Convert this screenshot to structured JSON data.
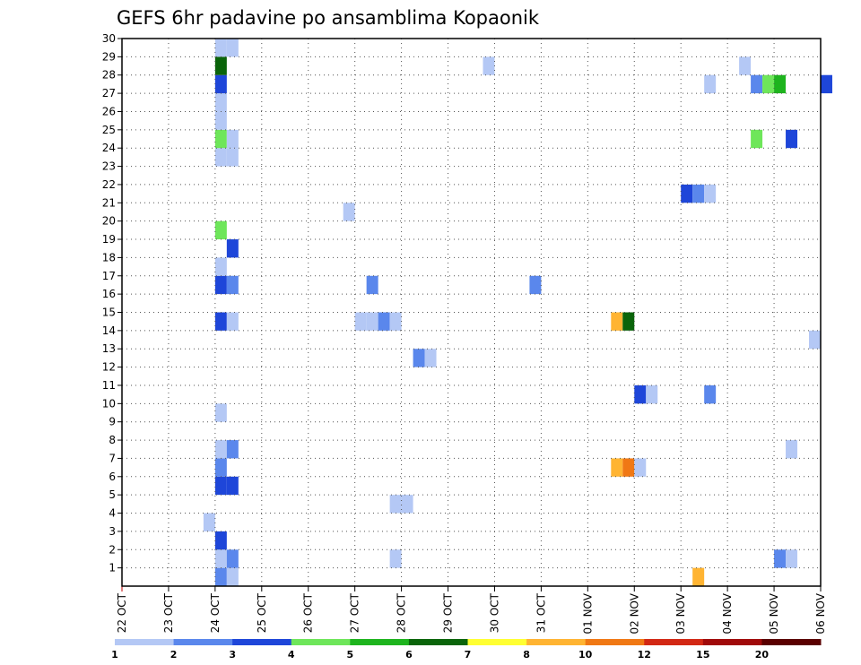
{
  "chart_data": {
    "type": "heatmap",
    "title": "GEFS 6hr padavine po ansamblima Kopaonik",
    "x_tick_labels": [
      "22 OCT",
      "23 OCT",
      "24 OCT",
      "25 OCT",
      "26 OCT",
      "27 OCT",
      "28 OCT",
      "29 OCT",
      "30 OCT",
      "31 OCT",
      "01 NOV",
      "02 NOV",
      "03 NOV",
      "04 NOV",
      "05 NOV",
      "06 NOV"
    ],
    "y_tick_labels": [
      "1",
      "2",
      "3",
      "4",
      "5",
      "6",
      "7",
      "8",
      "9",
      "10",
      "11",
      "12",
      "13",
      "14",
      "15",
      "16",
      "17",
      "18",
      "19",
      "20",
      "21",
      "22",
      "23",
      "24",
      "25",
      "26",
      "27",
      "28",
      "29",
      "30"
    ],
    "ylim": [
      0,
      30
    ],
    "time_step_hours": 6,
    "grid": "dotted",
    "colorbar": {
      "labels": [
        "1",
        "2",
        "3",
        "4",
        "5",
        "6",
        "7",
        "8",
        "10",
        "12",
        "15",
        "20"
      ],
      "colors": [
        "#b4c8f5",
        "#5a87ec",
        "#1e46d9",
        "#6ee65a",
        "#1eb41e",
        "#0a640a",
        "#ffff32",
        "#ffb432",
        "#f07814",
        "#d22814",
        "#a00a0a",
        "#5a0000"
      ]
    },
    "cells": [
      {
        "t": "24 OCT 00z",
        "m": 0,
        "c": 1
      },
      {
        "t": "24 OCT 00z",
        "m": 1,
        "c": 0
      },
      {
        "t": "24 OCT 00z",
        "m": 2,
        "c": 2
      },
      {
        "t": "24 OCT 00z",
        "m": 5,
        "c": 2
      },
      {
        "t": "24 OCT 00z",
        "m": 6,
        "c": 1
      },
      {
        "t": "24 OCT 00z",
        "m": 7,
        "c": 0
      },
      {
        "t": "24 OCT 00z",
        "m": 9,
        "c": 0
      },
      {
        "t": "24 OCT 00z",
        "m": 14,
        "c": 2
      },
      {
        "t": "24 OCT 00z",
        "m": 16,
        "c": 2
      },
      {
        "t": "24 OCT 00z",
        "m": 17,
        "c": 0
      },
      {
        "t": "24 OCT 00z",
        "m": 19,
        "c": 3
      },
      {
        "t": "24 OCT 00z",
        "m": 23,
        "c": 0
      },
      {
        "t": "24 OCT 00z",
        "m": 24,
        "c": 3
      },
      {
        "t": "24 OCT 00z",
        "m": 25,
        "c": 0
      },
      {
        "t": "24 OCT 00z",
        "m": 26,
        "c": 0
      },
      {
        "t": "24 OCT 00z",
        "m": 27,
        "c": 2
      },
      {
        "t": "24 OCT 00z",
        "m": 28,
        "c": 5
      },
      {
        "t": "24 OCT 00z",
        "m": 29,
        "c": 0
      },
      {
        "t": "23 OCT 18z",
        "m": 3,
        "c": 0
      },
      {
        "t": "24 OCT 06z",
        "m": 0,
        "c": 0
      },
      {
        "t": "24 OCT 06z",
        "m": 1,
        "c": 1
      },
      {
        "t": "24 OCT 06z",
        "m": 5,
        "c": 2
      },
      {
        "t": "24 OCT 06z",
        "m": 7,
        "c": 1
      },
      {
        "t": "24 OCT 06z",
        "m": 14,
        "c": 0
      },
      {
        "t": "24 OCT 06z",
        "m": 16,
        "c": 1
      },
      {
        "t": "24 OCT 06z",
        "m": 18,
        "c": 2
      },
      {
        "t": "24 OCT 06z",
        "m": 23,
        "c": 0
      },
      {
        "t": "24 OCT 06z",
        "m": 24,
        "c": 0
      },
      {
        "t": "24 OCT 06z",
        "m": 29,
        "c": 0
      },
      {
        "t": "26 OCT 18z",
        "m": 20,
        "c": 0
      },
      {
        "t": "27 OCT 00z",
        "m": 14,
        "c": 0
      },
      {
        "t": "27 OCT 06z",
        "m": 14,
        "c": 0
      },
      {
        "t": "27 OCT 06z",
        "m": 16,
        "c": 1
      },
      {
        "t": "27 OCT 12z",
        "m": 14,
        "c": 1
      },
      {
        "t": "27 OCT 18z",
        "m": 1,
        "c": 0
      },
      {
        "t": "27 OCT 18z",
        "m": 4,
        "c": 0
      },
      {
        "t": "27 OCT 18z",
        "m": 14,
        "c": 0
      },
      {
        "t": "28 OCT 00z",
        "m": 4,
        "c": 0
      },
      {
        "t": "28 OCT 06z",
        "m": 12,
        "c": 1
      },
      {
        "t": "28 OCT 12z",
        "m": 12,
        "c": 0
      },
      {
        "t": "29 OCT 18z",
        "m": 28,
        "c": 0
      },
      {
        "t": "30 OCT 18z",
        "m": 16,
        "c": 1
      },
      {
        "t": "01 NOV 12z",
        "m": 6,
        "c": 7
      },
      {
        "t": "01 NOV 12z",
        "m": 14,
        "c": 7
      },
      {
        "t": "01 NOV 18z",
        "m": 6,
        "c": 8
      },
      {
        "t": "01 NOV 18z",
        "m": 14,
        "c": 5
      },
      {
        "t": "02 NOV 00z",
        "m": 6,
        "c": 0
      },
      {
        "t": "02 NOV 00z",
        "m": 10,
        "c": 2
      },
      {
        "t": "02 NOV 06z",
        "m": 10,
        "c": 0
      },
      {
        "t": "03 NOV 00z",
        "m": 21,
        "c": 2
      },
      {
        "t": "03 NOV 06z",
        "m": 0,
        "c": 7
      },
      {
        "t": "03 NOV 06z",
        "m": 21,
        "c": 1
      },
      {
        "t": "03 NOV 12z",
        "m": 10,
        "c": 1
      },
      {
        "t": "03 NOV 12z",
        "m": 21,
        "c": 0
      },
      {
        "t": "03 NOV 12z",
        "m": 27,
        "c": 0
      },
      {
        "t": "04 NOV 06z",
        "m": 28,
        "c": 0
      },
      {
        "t": "04 NOV 12z",
        "m": 24,
        "c": 3
      },
      {
        "t": "04 NOV 12z",
        "m": 27,
        "c": 1
      },
      {
        "t": "04 NOV 18z",
        "m": 27,
        "c": 3
      },
      {
        "t": "05 NOV 00z",
        "m": 1,
        "c": 1
      },
      {
        "t": "05 NOV 00z",
        "m": 27,
        "c": 4
      },
      {
        "t": "05 NOV 06z",
        "m": 1,
        "c": 0
      },
      {
        "t": "05 NOV 06z",
        "m": 7,
        "c": 0
      },
      {
        "t": "05 NOV 06z",
        "m": 24,
        "c": 2
      },
      {
        "t": "05 NOV 18z",
        "m": 13,
        "c": 0
      },
      {
        "t": "06 NOV 00z",
        "m": 27,
        "c": 2
      }
    ]
  }
}
